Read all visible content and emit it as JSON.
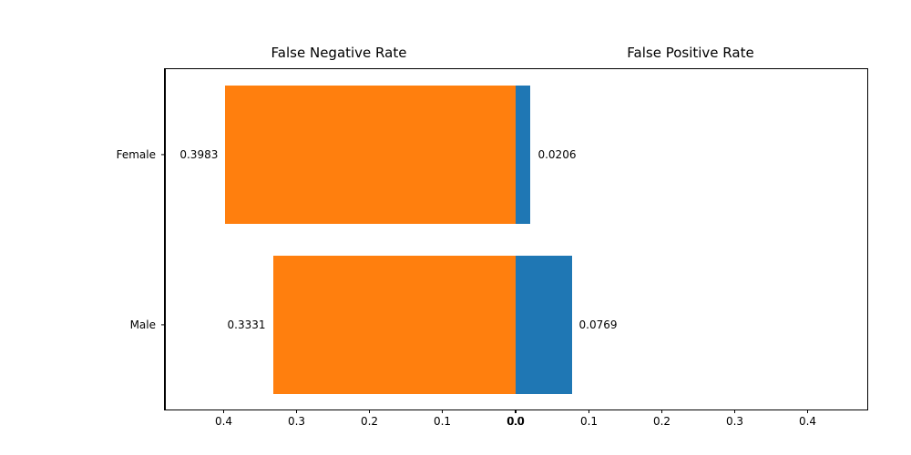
{
  "chart_data": {
    "type": "bar",
    "orientation": "horizontal-diverging",
    "categories": [
      "Female",
      "Male"
    ],
    "series": [
      {
        "name": "False Negative Rate",
        "slug": "fnr",
        "side": "left",
        "color": "#ff7f0e",
        "values": [
          0.3983,
          0.3331
        ],
        "value_labels": [
          "0.3983",
          "0.3331"
        ]
      },
      {
        "name": "False Positive Rate",
        "slug": "fpr",
        "side": "right",
        "color": "#1f77b4",
        "values": [
          0.0206,
          0.0769
        ],
        "value_labels": [
          "0.0206",
          "0.0769"
        ]
      }
    ],
    "titles": {
      "left": "False Negative Rate",
      "right": "False Positive Rate"
    },
    "x_ticks": {
      "left": [
        "0.4",
        "0.3",
        "0.2",
        "0.1",
        "0.0"
      ],
      "right": [
        "0.0",
        "0.1",
        "0.2",
        "0.3",
        "0.4"
      ]
    },
    "xlim_each_side": [
      0,
      0.48
    ],
    "grid": false,
    "legend": "none",
    "text_color": "#000000",
    "background_color": "#ffffff"
  }
}
